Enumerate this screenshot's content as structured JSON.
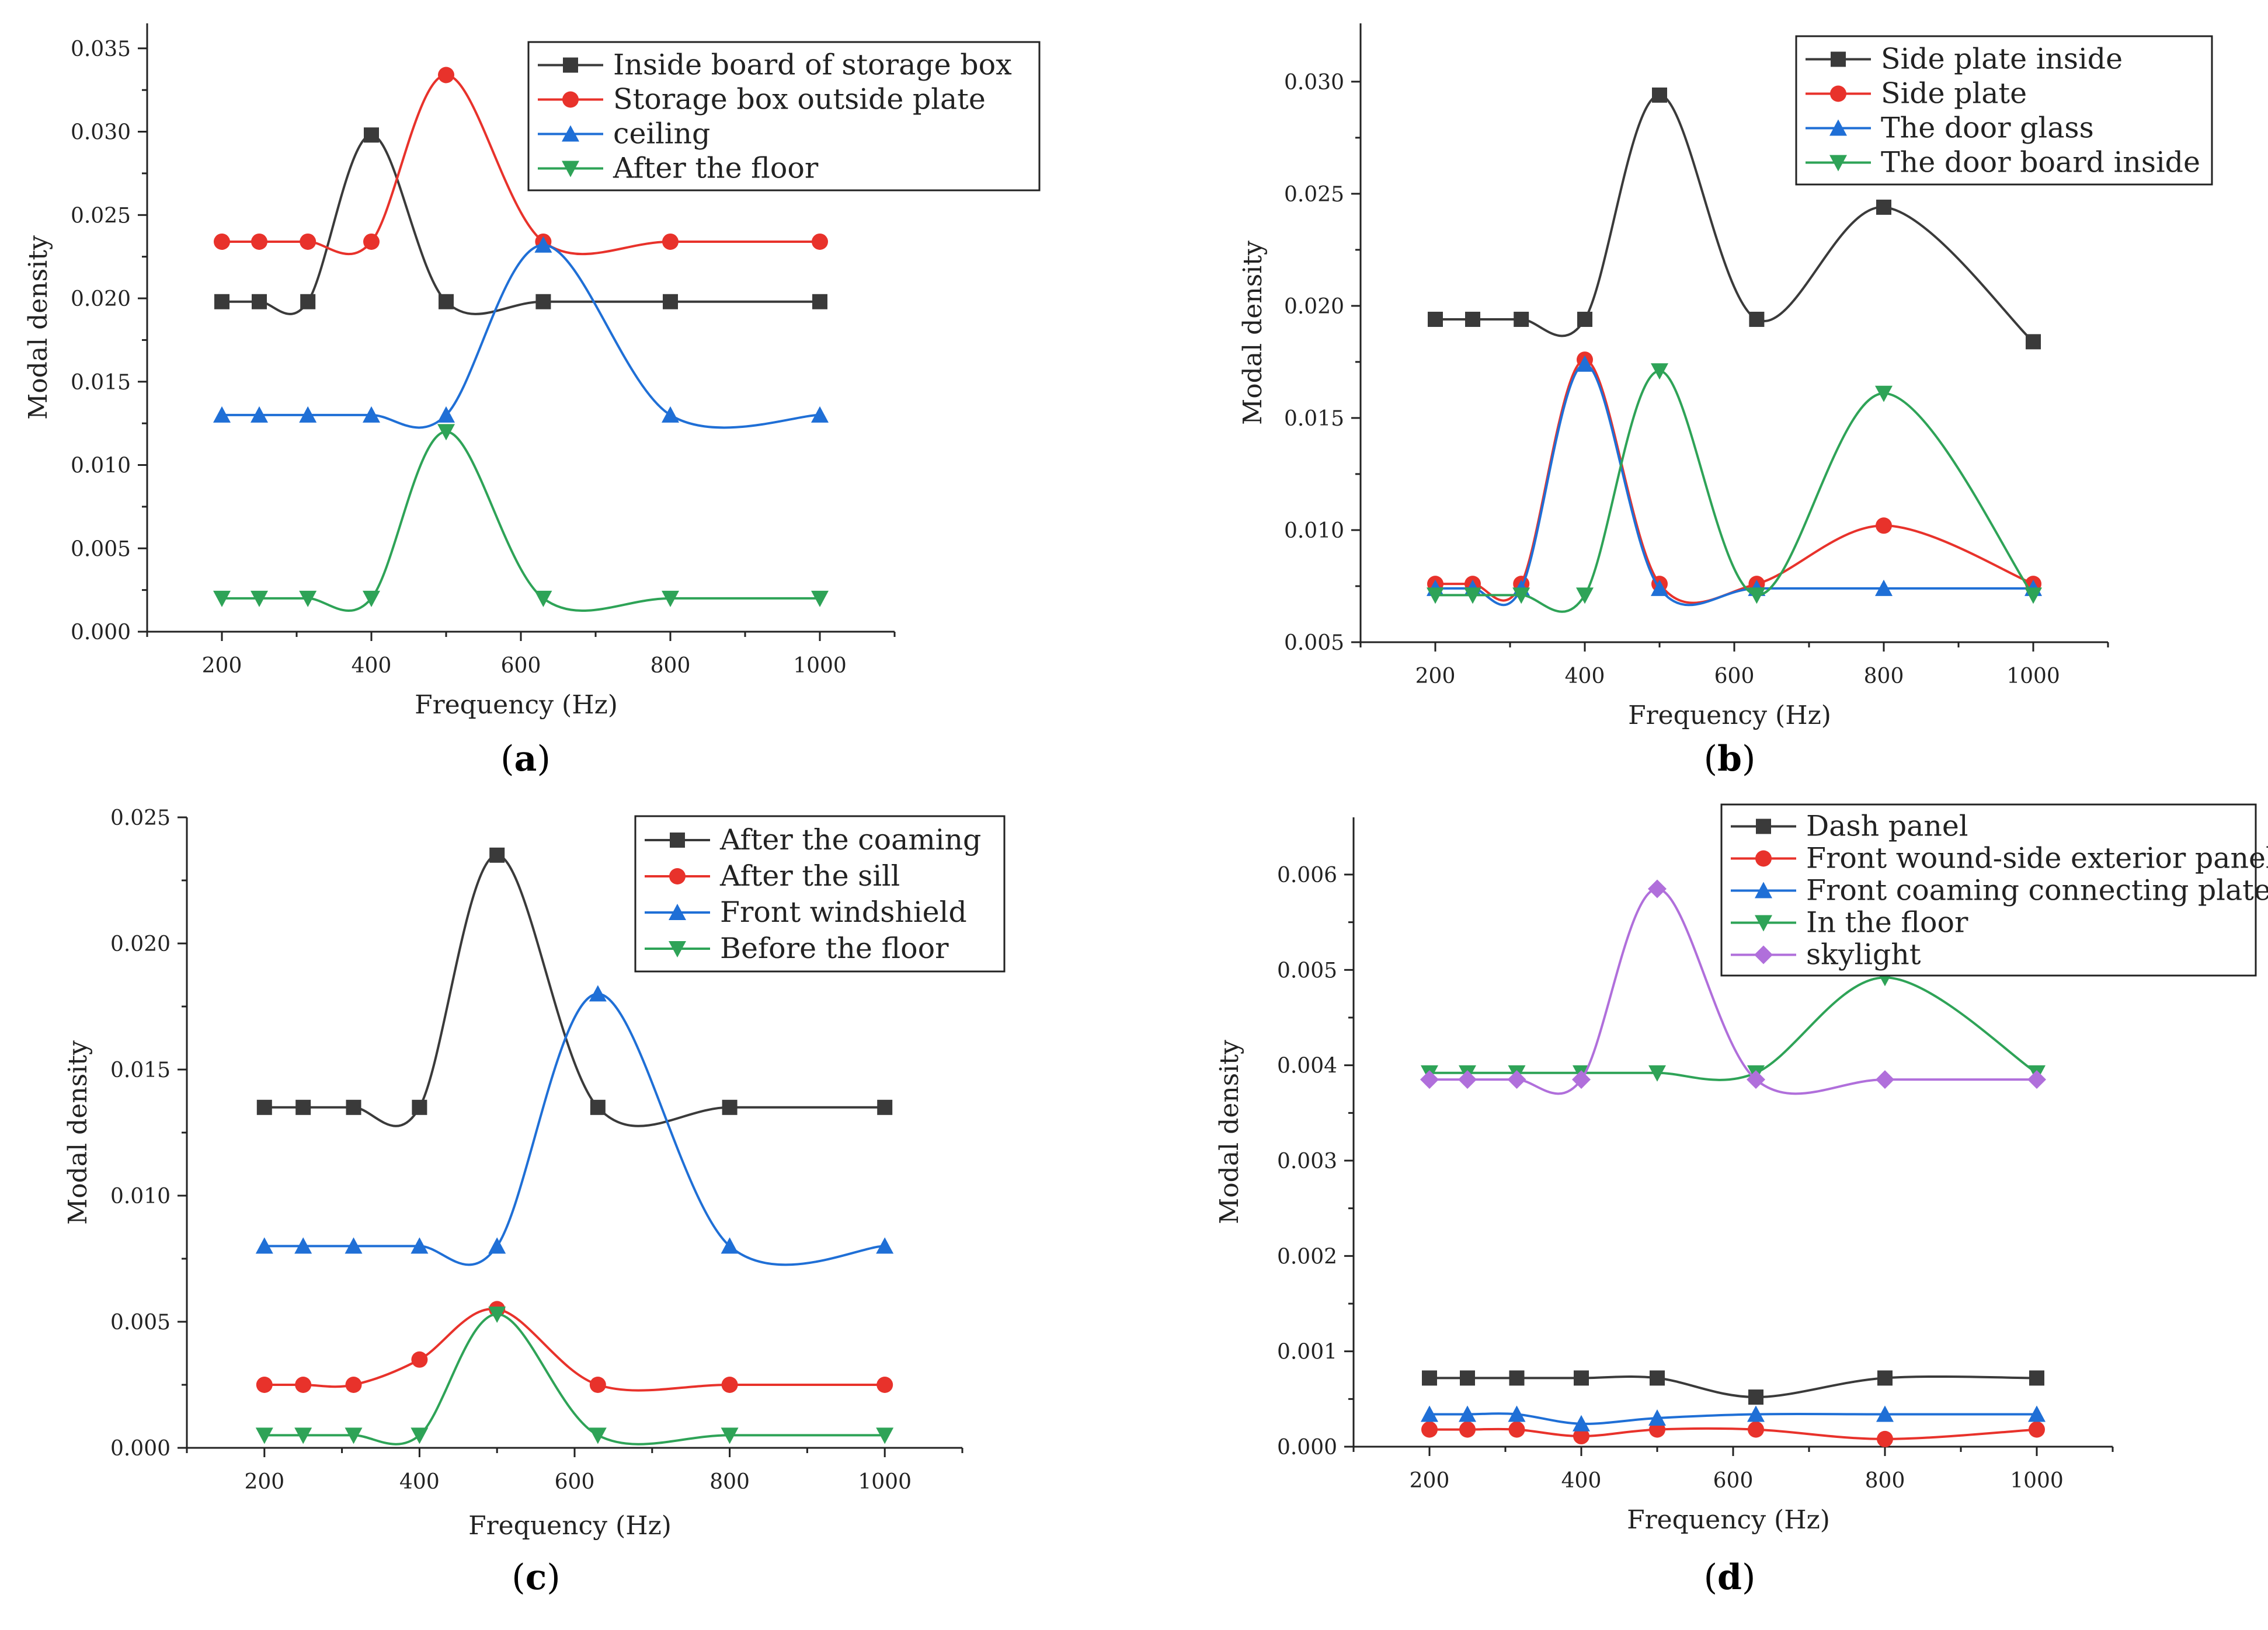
{
  "chart_data": [
    {
      "type": "line",
      "panel_label": "a",
      "xlabel": "Frequency (Hz)",
      "ylabel": "Modal density",
      "xlim": [
        100,
        1100
      ],
      "ylim": [
        0,
        0.0365
      ],
      "xticks": [
        200,
        400,
        600,
        800,
        1000
      ],
      "yticks": [
        0.0,
        0.005,
        0.01,
        0.015,
        0.02,
        0.025,
        0.03,
        0.035
      ],
      "ytick_labels": [
        "0.000",
        "0.005",
        "0.010",
        "0.015",
        "0.020",
        "0.025",
        "0.030",
        "0.035"
      ],
      "x": [
        200,
        250,
        315,
        400,
        500,
        630,
        800,
        1000
      ],
      "legend_position": "top-right",
      "series": [
        {
          "name": "Inside board of storage box",
          "color": "#3a3a3a",
          "marker": "square",
          "values": [
            0.0198,
            0.0198,
            0.0198,
            0.0298,
            0.0198,
            0.0198,
            0.0198,
            0.0198
          ]
        },
        {
          "name": "Storage box outside plate",
          "color": "#e8322b",
          "marker": "circle",
          "values": [
            0.0234,
            0.0234,
            0.0234,
            0.0234,
            0.0334,
            0.0234,
            0.0234,
            0.0234
          ]
        },
        {
          "name": "ceiling",
          "color": "#1f6fd6",
          "marker": "triangle-up",
          "values": [
            0.013,
            0.013,
            0.013,
            0.013,
            0.013,
            0.0232,
            0.013,
            0.013
          ]
        },
        {
          "name": "After the floor",
          "color": "#2ea357",
          "marker": "triangle-down",
          "values": [
            0.002,
            0.002,
            0.002,
            0.002,
            0.012,
            0.002,
            0.002,
            0.002
          ]
        }
      ]
    },
    {
      "type": "line",
      "panel_label": "b",
      "xlabel": "Frequency (Hz)",
      "ylabel": "Modal density",
      "xlim": [
        100,
        1100
      ],
      "ylim": [
        0.005,
        0.0326
      ],
      "xticks": [
        200,
        400,
        600,
        800,
        1000
      ],
      "yticks": [
        0.005,
        0.01,
        0.015,
        0.02,
        0.025,
        0.03
      ],
      "ytick_labels": [
        "0.005",
        "0.010",
        "0.015",
        "0.020",
        "0.025",
        "0.030"
      ],
      "x": [
        200,
        250,
        315,
        400,
        500,
        630,
        800,
        1000
      ],
      "legend_position": "top-right",
      "series": [
        {
          "name": "Side plate inside",
          "color": "#3a3a3a",
          "marker": "square",
          "values": [
            0.0194,
            0.0194,
            0.0194,
            0.0194,
            0.0294,
            0.0194,
            0.0244,
            0.0184
          ]
        },
        {
          "name": "Side plate",
          "color": "#e8322b",
          "marker": "circle",
          "values": [
            0.0076,
            0.0076,
            0.0076,
            0.0176,
            0.0076,
            0.0076,
            0.0102,
            0.0076
          ]
        },
        {
          "name": "The door glass",
          "color": "#1f6fd6",
          "marker": "triangle-up",
          "values": [
            0.0074,
            0.0074,
            0.0074,
            0.0174,
            0.0074,
            0.0074,
            0.0074,
            0.0074
          ]
        },
        {
          "name": "The door board inside",
          "color": "#2ea357",
          "marker": "triangle-down",
          "values": [
            0.0071,
            0.0071,
            0.0071,
            0.0071,
            0.0171,
            0.0071,
            0.0161,
            0.0071
          ]
        }
      ]
    },
    {
      "type": "line",
      "panel_label": "c",
      "xlabel": "Frequency (Hz)",
      "ylabel": "Modal density",
      "xlim": [
        100,
        1100
      ],
      "ylim": [
        0,
        0.025
      ],
      "xticks": [
        200,
        400,
        600,
        800,
        1000
      ],
      "yticks": [
        0.0,
        0.005,
        0.01,
        0.015,
        0.02,
        0.025
      ],
      "ytick_labels": [
        "0.000",
        "0.005",
        "0.010",
        "0.015",
        "0.020",
        "0.025"
      ],
      "x": [
        200,
        250,
        315,
        400,
        500,
        630,
        800,
        1000
      ],
      "legend_position": "top-right",
      "series": [
        {
          "name": "After the coaming",
          "color": "#3a3a3a",
          "marker": "square",
          "values": [
            0.0135,
            0.0135,
            0.0135,
            0.0135,
            0.0235,
            0.0135,
            0.0135,
            0.0135
          ]
        },
        {
          "name": "After the sill",
          "color": "#e8322b",
          "marker": "circle",
          "values": [
            0.0025,
            0.0025,
            0.0025,
            0.0035,
            0.0055,
            0.0025,
            0.0025,
            0.0025
          ]
        },
        {
          "name": "Front windshield",
          "color": "#1f6fd6",
          "marker": "triangle-up",
          "values": [
            0.008,
            0.008,
            0.008,
            0.008,
            0.008,
            0.018,
            0.008,
            0.008
          ]
        },
        {
          "name": "Before the floor",
          "color": "#2ea357",
          "marker": "triangle-down",
          "values": [
            0.0005,
            0.0005,
            0.0005,
            0.0005,
            0.0053,
            0.0005,
            0.0005,
            0.0005
          ]
        }
      ]
    },
    {
      "type": "line",
      "panel_label": "d",
      "xlabel": "Frequency (Hz)",
      "ylabel": "Modal density",
      "xlim": [
        100,
        1100
      ],
      "ylim": [
        0,
        0.0066
      ],
      "xticks": [
        200,
        400,
        600,
        800,
        1000
      ],
      "yticks": [
        0.0,
        0.001,
        0.002,
        0.003,
        0.004,
        0.005,
        0.006
      ],
      "ytick_labels": [
        "0.000",
        "0.001",
        "0.002",
        "0.003",
        "0.004",
        "0.005",
        "0.006"
      ],
      "x": [
        200,
        250,
        315,
        400,
        500,
        630,
        800,
        1000
      ],
      "legend_position": "top-right",
      "series": [
        {
          "name": "Dash panel",
          "color": "#3a3a3a",
          "marker": "square",
          "values": [
            0.00072,
            0.00072,
            0.00072,
            0.00072,
            0.00072,
            0.00052,
            0.00072,
            0.00072
          ]
        },
        {
          "name": "Front wound-side exterior panel",
          "color": "#e8322b",
          "marker": "circle",
          "values": [
            0.00018,
            0.00018,
            0.00018,
            0.00011,
            0.00018,
            0.00018,
            8e-05,
            0.00018
          ]
        },
        {
          "name": "Front coaming connecting plate",
          "color": "#1f6fd6",
          "marker": "triangle-up",
          "values": [
            0.00034,
            0.00034,
            0.00034,
            0.00024,
            0.0003,
            0.00034,
            0.00034,
            0.00034
          ]
        },
        {
          "name": "In the floor",
          "color": "#2ea357",
          "marker": "triangle-down",
          "values": [
            0.00392,
            0.00392,
            0.00392,
            0.00392,
            0.00392,
            0.00392,
            0.00492,
            0.00392
          ]
        },
        {
          "name": "skylight",
          "color": "#b06fdb",
          "marker": "diamond",
          "values": [
            0.00385,
            0.00385,
            0.00385,
            0.00385,
            0.00585,
            0.00385,
            0.00385,
            0.00385
          ]
        }
      ]
    }
  ]
}
